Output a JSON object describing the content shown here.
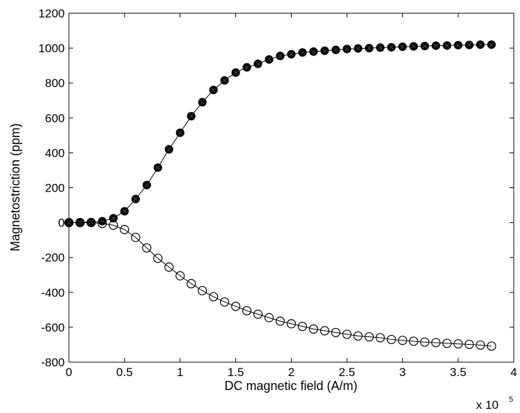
{
  "chart_data": {
    "type": "line",
    "title": "",
    "xlabel": "DC magnetic field (A/m)",
    "ylabel": "Magnetostriction (ppm)",
    "x_multiplier_label": "x 10",
    "x_multiplier_exponent": "5",
    "xlim": [
      0,
      4
    ],
    "ylim": [
      -800,
      1200
    ],
    "x_ticks": [
      0,
      0.5,
      1,
      1.5,
      2,
      2.5,
      3,
      3.5,
      4
    ],
    "x_tick_labels": [
      "0",
      "0.5",
      "1",
      "1.5",
      "2",
      "2.5",
      "3",
      "3.5",
      "4"
    ],
    "y_ticks": [
      -800,
      -600,
      -400,
      -200,
      0,
      200,
      400,
      600,
      800,
      1000,
      1200
    ],
    "y_tick_labels": [
      "-800",
      "-600",
      "-400",
      "-200",
      "0",
      "200",
      "400",
      "600",
      "800",
      "1000",
      "1200"
    ],
    "grid": false,
    "legend": "none",
    "x": [
      0.0,
      0.1,
      0.2,
      0.3,
      0.4,
      0.5,
      0.6,
      0.7,
      0.8,
      0.9,
      1.0,
      1.1,
      1.2,
      1.3,
      1.4,
      1.5,
      1.6,
      1.7,
      1.8,
      1.9,
      2.0,
      2.1,
      2.2,
      2.3,
      2.4,
      2.5,
      2.6,
      2.7,
      2.8,
      2.9,
      3.0,
      3.1,
      3.2,
      3.3,
      3.4,
      3.5,
      3.6,
      3.7,
      3.8
    ],
    "series": [
      {
        "marker": "filled-circle",
        "color": "#000000",
        "values": [
          0,
          2,
          3,
          8,
          25,
          65,
          135,
          215,
          315,
          420,
          515,
          610,
          690,
          760,
          815,
          860,
          890,
          910,
          935,
          955,
          965,
          975,
          980,
          985,
          990,
          995,
          998,
          1000,
          1003,
          1005,
          1008,
          1010,
          1012,
          1014,
          1015,
          1017,
          1018,
          1020,
          1020
        ]
      },
      {
        "marker": "open-circle",
        "color": "#000000",
        "values": [
          0,
          0,
          0,
          -5,
          -15,
          -40,
          -85,
          -145,
          -205,
          -255,
          -305,
          -350,
          -390,
          -425,
          -455,
          -480,
          -505,
          -525,
          -545,
          -565,
          -580,
          -595,
          -610,
          -620,
          -630,
          -640,
          -650,
          -655,
          -660,
          -670,
          -675,
          -680,
          -685,
          -688,
          -692,
          -695,
          -698,
          -702,
          -708
        ]
      }
    ]
  }
}
